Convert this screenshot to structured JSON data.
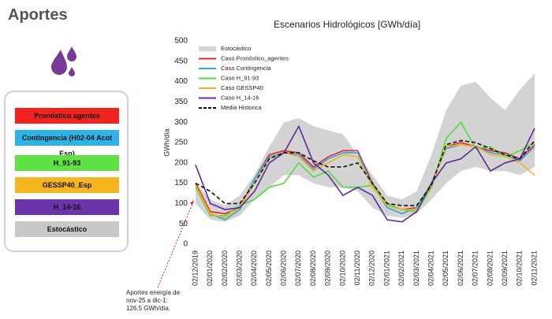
{
  "header": {
    "title": "Aportes"
  },
  "panel": {
    "items": [
      {
        "label": "Pronóstico agentes",
        "color": "#f0231f"
      },
      {
        "label": "Contingencia (H02-04 Acot Esp)",
        "color": "#2eb3e6"
      },
      {
        "label": "H_91-93",
        "color": "#5fe043"
      },
      {
        "label": "GESSP40_Esp",
        "color": "#f7b51f"
      },
      {
        "label": "H_14-16",
        "color": "#6b34a8"
      },
      {
        "label": "Estocástico",
        "color": "#c8c8c8"
      }
    ]
  },
  "chart_data": {
    "type": "line",
    "title": "Escenarios Hidrológicos [GWh/día]",
    "y_label": "GWh/día",
    "annotation": [
      "Aportes energía de",
      "nov-25 a dic-1:",
      "126.5 GWh/día."
    ],
    "categories": [
      "02/12/2019",
      "02/01/2020",
      "02/02/2020",
      "02/03/2020",
      "02/04/2020",
      "02/05/2020",
      "02/06/2020",
      "02/07/2020",
      "02/08/2020",
      "02/09/2020",
      "02/10/2020",
      "02/11/2020",
      "02/12/2020",
      "02/01/2021",
      "02/02/2021",
      "02/03/2021",
      "02/04/2021",
      "02/05/2021",
      "02/06/2021",
      "02/07/2021",
      "02/08/2021",
      "02/09/2021",
      "02/10/2021",
      "02/11/2021"
    ],
    "ylim": [
      0,
      500
    ],
    "yticks": [
      0,
      50,
      100,
      150,
      200,
      250,
      300,
      350,
      400,
      450,
      500
    ],
    "grid": false,
    "band": {
      "name": "Estocástico",
      "color": "#d3d3d3",
      "high": [
        150,
        110,
        95,
        120,
        170,
        240,
        300,
        310,
        290,
        280,
        270,
        220,
        170,
        120,
        110,
        130,
        220,
        330,
        390,
        400,
        360,
        330,
        380,
        420
      ],
      "low": [
        100,
        60,
        55,
        70,
        110,
        140,
        170,
        170,
        150,
        140,
        140,
        130,
        90,
        70,
        65,
        75,
        110,
        150,
        180,
        190,
        180,
        180,
        170,
        190
      ]
    },
    "series": [
      {
        "name": "Caso Pronóstico_agentes",
        "color": "#e8232a",
        "values": [
          150,
          80,
          75,
          90,
          160,
          220,
          230,
          225,
          190,
          215,
          230,
          230,
          150,
          95,
          85,
          90,
          150,
          240,
          250,
          240,
          230,
          225,
          210,
          245
        ]
      },
      {
        "name": "Caso Contingencia",
        "color": "#2aa9e0",
        "values": [
          145,
          75,
          60,
          85,
          160,
          215,
          225,
          220,
          185,
          210,
          225,
          225,
          145,
          90,
          75,
          90,
          150,
          235,
          245,
          240,
          225,
          220,
          205,
          240
        ]
      },
      {
        "name": "Caso H_91-93",
        "color": "#4ddc3a",
        "values": [
          140,
          70,
          70,
          95,
          110,
          140,
          150,
          200,
          165,
          180,
          140,
          140,
          145,
          100,
          85,
          80,
          140,
          260,
          300,
          235,
          240,
          215,
          230,
          250
        ]
      },
      {
        "name": "Caso GESSP40",
        "color": "#f5b21e",
        "values": [
          145,
          75,
          65,
          90,
          150,
          210,
          225,
          215,
          180,
          200,
          220,
          215,
          140,
          95,
          85,
          85,
          145,
          240,
          245,
          240,
          220,
          215,
          200,
          170
        ]
      },
      {
        "name": "Caso H_14-16",
        "color": "#5b2b9e",
        "values": [
          195,
          100,
          85,
          90,
          130,
          200,
          225,
          290,
          200,
          170,
          120,
          140,
          120,
          60,
          55,
          80,
          150,
          200,
          210,
          240,
          180,
          200,
          210,
          285
        ]
      },
      {
        "name": "Media Historica",
        "color": "#111111",
        "dashed": true,
        "values": [
          150,
          130,
          100,
          100,
          150,
          210,
          225,
          225,
          205,
          190,
          190,
          200,
          150,
          100,
          95,
          95,
          145,
          245,
          255,
          250,
          235,
          220,
          210,
          255
        ]
      }
    ]
  }
}
